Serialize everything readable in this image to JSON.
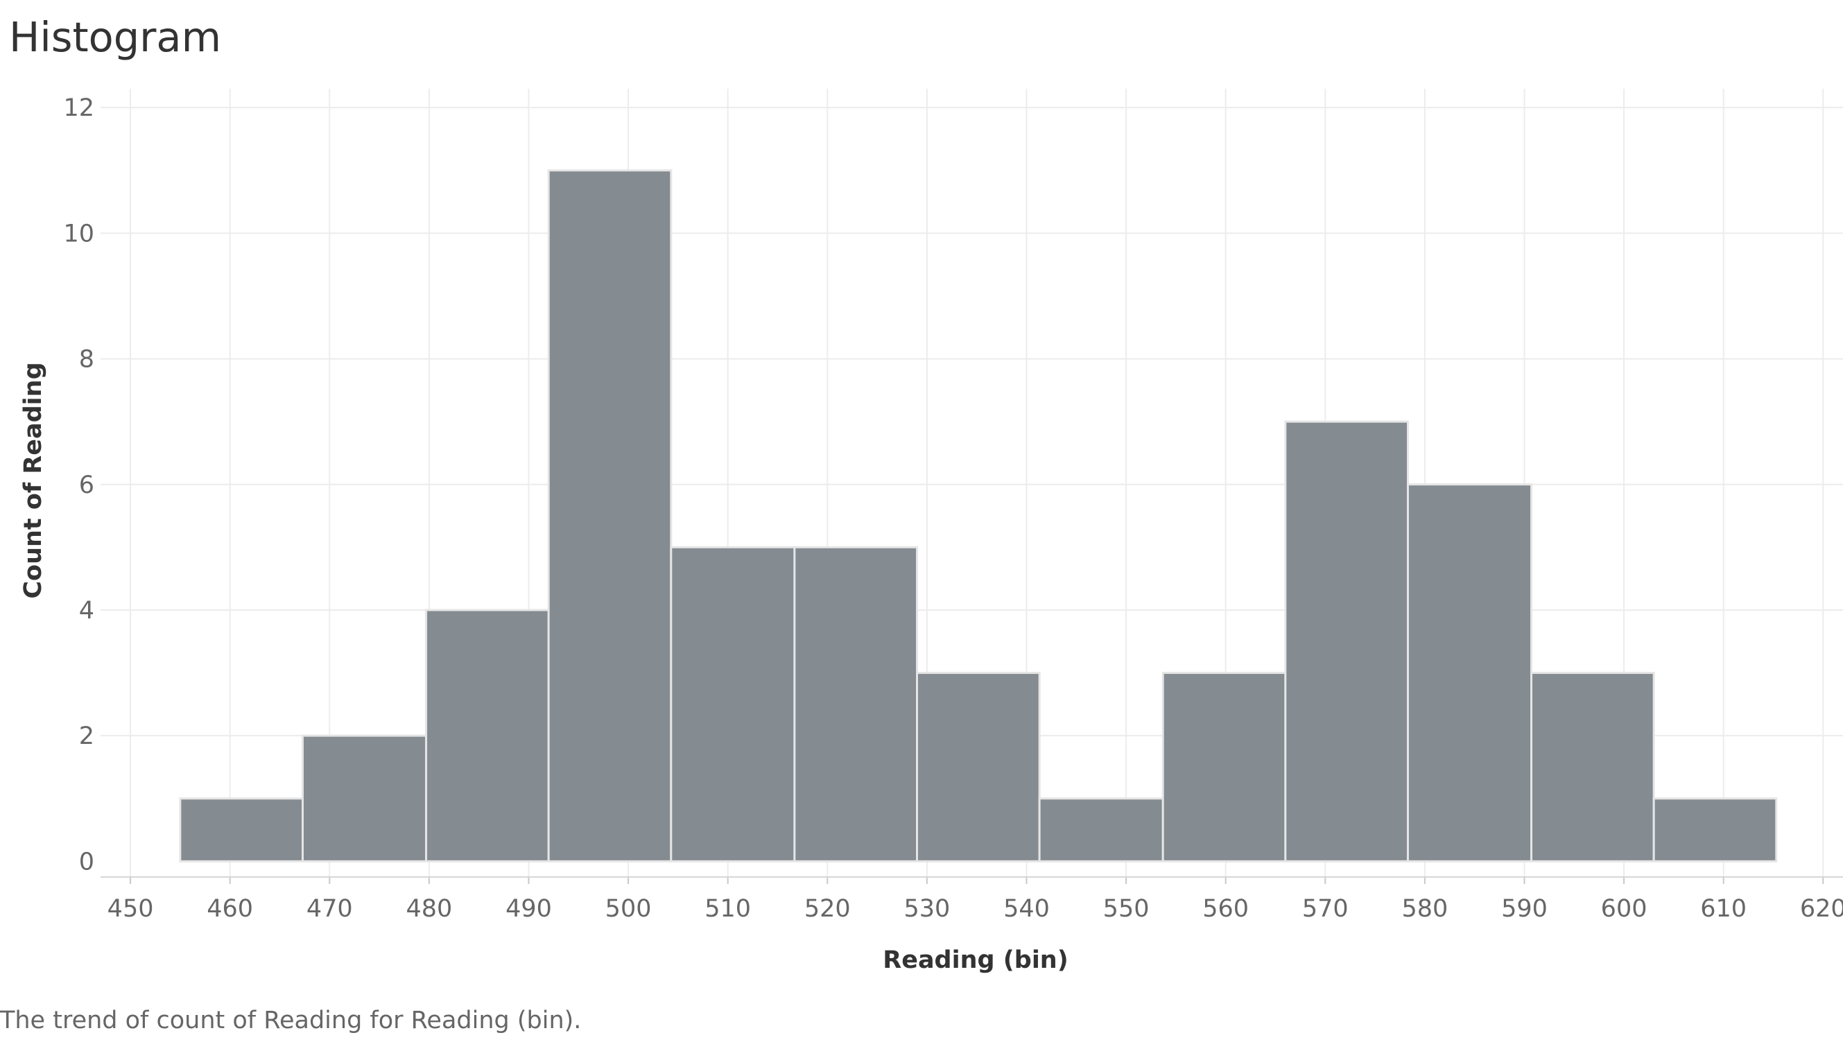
{
  "page": {
    "title": "Histogram",
    "caption": "The trend of count of Reading for Reading (bin)."
  },
  "chart_data": {
    "type": "bar",
    "title": "Histogram",
    "xlabel": "Reading (bin)",
    "ylabel": "Count of Reading",
    "xlim": [
      447,
      622
    ],
    "ylim": [
      -0.25,
      12.3
    ],
    "x_ticks": [
      450,
      460,
      470,
      480,
      490,
      500,
      510,
      520,
      530,
      540,
      550,
      560,
      570,
      580,
      590,
      600,
      610,
      620
    ],
    "y_ticks": [
      0,
      2,
      4,
      6,
      8,
      10,
      12
    ],
    "grid": true,
    "legend": "none",
    "bar_color": "#848b91",
    "bar_edge_color": "#e5e5e5",
    "bins": [
      {
        "start": 455.0,
        "end": 467.3,
        "count": 1
      },
      {
        "start": 467.3,
        "end": 479.7,
        "count": 2
      },
      {
        "start": 479.7,
        "end": 492.0,
        "count": 4
      },
      {
        "start": 492.0,
        "end": 504.3,
        "count": 11
      },
      {
        "start": 504.3,
        "end": 516.7,
        "count": 5
      },
      {
        "start": 516.7,
        "end": 529.0,
        "count": 5
      },
      {
        "start": 529.0,
        "end": 541.3,
        "count": 3
      },
      {
        "start": 541.3,
        "end": 553.7,
        "count": 1
      },
      {
        "start": 553.7,
        "end": 566.0,
        "count": 3
      },
      {
        "start": 566.0,
        "end": 578.3,
        "count": 7
      },
      {
        "start": 578.3,
        "end": 590.7,
        "count": 6
      },
      {
        "start": 590.7,
        "end": 603.0,
        "count": 3
      },
      {
        "start": 603.0,
        "end": 615.3,
        "count": 1
      }
    ]
  }
}
